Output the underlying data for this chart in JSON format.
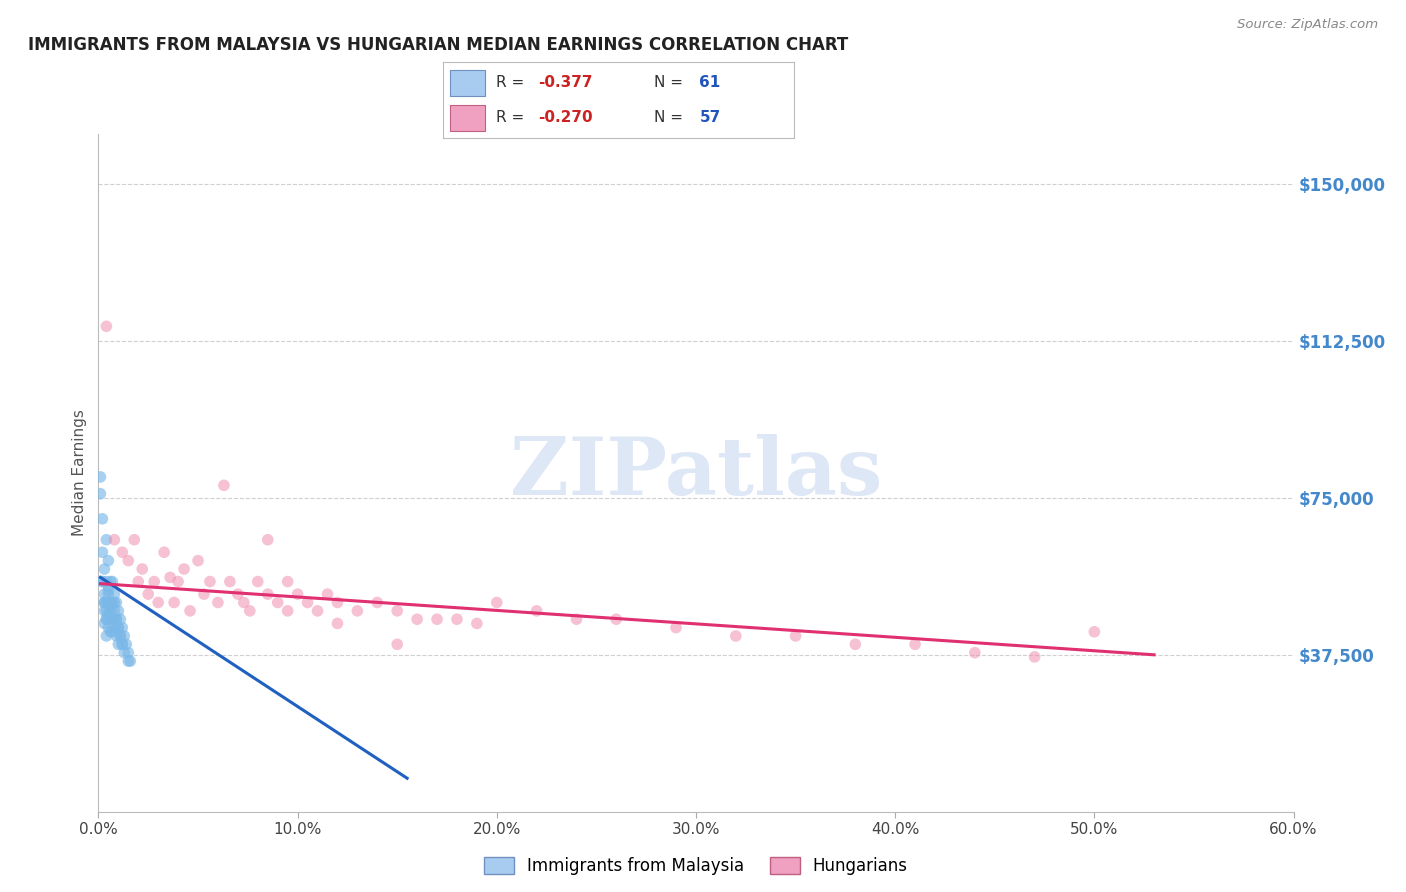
{
  "title": "IMMIGRANTS FROM MALAYSIA VS HUNGARIAN MEDIAN EARNINGS CORRELATION CHART",
  "source": "Source: ZipAtlas.com",
  "ylabel": "Median Earnings",
  "yticks": [
    0,
    37500,
    75000,
    112500,
    150000
  ],
  "ytick_labels": [
    "",
    "$37,500",
    "$75,000",
    "$112,500",
    "$150,000"
  ],
  "ylim": [
    0,
    162000
  ],
  "xlim": [
    0.0,
    0.6
  ],
  "xticks": [
    0.0,
    0.1,
    0.2,
    0.3,
    0.4,
    0.5,
    0.6
  ],
  "xtick_labels": [
    "0.0%",
    "10.0%",
    "20.0%",
    "30.0%",
    "40.0%",
    "50.0%",
    "60.0%"
  ],
  "legend_bottom": [
    "Immigrants from Malaysia",
    "Hungarians"
  ],
  "corr_blue": {
    "R": "-0.377",
    "N": "61"
  },
  "corr_pink": {
    "R": "-0.270",
    "N": "57"
  },
  "scatter_blue": {
    "x": [
      0.001,
      0.001,
      0.002,
      0.002,
      0.002,
      0.003,
      0.003,
      0.003,
      0.003,
      0.003,
      0.004,
      0.004,
      0.004,
      0.004,
      0.004,
      0.004,
      0.005,
      0.005,
      0.005,
      0.005,
      0.005,
      0.005,
      0.006,
      0.006,
      0.006,
      0.006,
      0.006,
      0.007,
      0.007,
      0.007,
      0.007,
      0.008,
      0.008,
      0.008,
      0.009,
      0.009,
      0.009,
      0.01,
      0.01,
      0.01,
      0.011,
      0.011,
      0.012,
      0.012,
      0.013,
      0.013,
      0.014,
      0.015,
      0.015,
      0.016,
      0.002,
      0.003,
      0.004,
      0.005,
      0.006,
      0.007,
      0.008,
      0.009,
      0.01,
      0.011,
      0.012
    ],
    "y": [
      80000,
      76000,
      55000,
      62000,
      70000,
      58000,
      52000,
      48000,
      45000,
      50000,
      65000,
      55000,
      50000,
      46000,
      42000,
      48000,
      60000,
      54000,
      50000,
      47000,
      44000,
      52000,
      55000,
      50000,
      46000,
      43000,
      48000,
      55000,
      50000,
      46000,
      43000,
      52000,
      48000,
      44000,
      50000,
      46000,
      42000,
      48000,
      44000,
      40000,
      46000,
      42000,
      44000,
      40000,
      42000,
      38000,
      40000,
      38000,
      36000,
      36000,
      55000,
      50000,
      46000,
      53000,
      49000,
      46000,
      50000,
      46000,
      44000,
      42000,
      40000
    ],
    "color": "#7ab8e8",
    "alpha": 0.65,
    "size": 70
  },
  "scatter_pink": {
    "x": [
      0.004,
      0.008,
      0.012,
      0.015,
      0.018,
      0.02,
      0.022,
      0.025,
      0.028,
      0.03,
      0.033,
      0.036,
      0.038,
      0.04,
      0.043,
      0.046,
      0.05,
      0.053,
      0.056,
      0.06,
      0.063,
      0.066,
      0.07,
      0.073,
      0.076,
      0.08,
      0.085,
      0.09,
      0.095,
      0.1,
      0.105,
      0.11,
      0.115,
      0.12,
      0.13,
      0.14,
      0.15,
      0.16,
      0.17,
      0.18,
      0.19,
      0.2,
      0.22,
      0.24,
      0.26,
      0.29,
      0.32,
      0.35,
      0.38,
      0.41,
      0.44,
      0.47,
      0.5,
      0.085,
      0.095,
      0.12,
      0.15
    ],
    "y": [
      116000,
      65000,
      62000,
      60000,
      65000,
      55000,
      58000,
      52000,
      55000,
      50000,
      62000,
      56000,
      50000,
      55000,
      58000,
      48000,
      60000,
      52000,
      55000,
      50000,
      78000,
      55000,
      52000,
      50000,
      48000,
      55000,
      52000,
      50000,
      55000,
      52000,
      50000,
      48000,
      52000,
      50000,
      48000,
      50000,
      48000,
      46000,
      46000,
      46000,
      45000,
      50000,
      48000,
      46000,
      46000,
      44000,
      42000,
      42000,
      40000,
      40000,
      38000,
      37000,
      43000,
      65000,
      48000,
      45000,
      40000
    ],
    "color": "#f090b0",
    "alpha": 0.55,
    "size": 70
  },
  "blue_trend": {
    "x": [
      0.001,
      0.155
    ],
    "y": [
      56000,
      8000
    ],
    "color": "#2060c0",
    "linewidth": 2.2
  },
  "pink_trend": {
    "x": [
      0.001,
      0.53
    ],
    "y": [
      54500,
      37500
    ],
    "color": "#e03070",
    "linewidth": 2.2
  },
  "watermark_text": "ZIPatlas",
  "watermark_color": "#c8d8f0",
  "watermark_alpha": 0.6,
  "background_color": "#ffffff",
  "grid_color": "#d0d0d0",
  "title_color": "#222222",
  "axis_label_color": "#555555",
  "ytick_color": "#4488cc",
  "xtick_color": "#444444",
  "source_color": "#888888"
}
